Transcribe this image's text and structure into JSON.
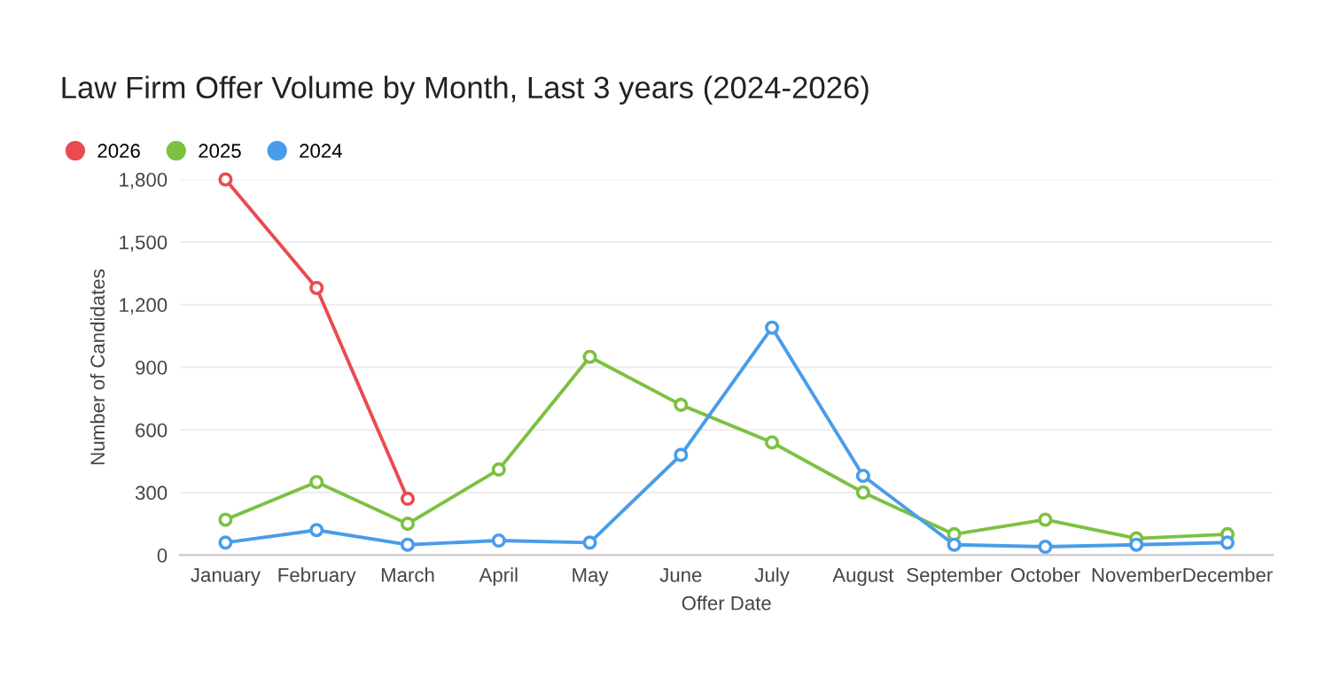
{
  "chart_data": {
    "type": "line",
    "title": "Law Firm Offer Volume by Month, Last 3 years (2024-2026)",
    "xlabel": "Offer Date",
    "ylabel": "Number of Candidates",
    "categories": [
      "January",
      "February",
      "March",
      "April",
      "May",
      "June",
      "July",
      "August",
      "September",
      "October",
      "November",
      "December"
    ],
    "series": [
      {
        "name": "2026",
        "color": "#e84c4f",
        "values": [
          1800,
          1280,
          270,
          null,
          null,
          null,
          null,
          null,
          null,
          null,
          null,
          null
        ]
      },
      {
        "name": "2025",
        "color": "#7cc142",
        "values": [
          170,
          350,
          150,
          410,
          950,
          720,
          540,
          300,
          100,
          170,
          80,
          100
        ]
      },
      {
        "name": "2024",
        "color": "#4a9ce8",
        "values": [
          60,
          120,
          50,
          70,
          60,
          480,
          1090,
          380,
          50,
          40,
          50,
          60
        ]
      }
    ],
    "ylim": [
      0,
      1800
    ],
    "yticks": [
      0,
      300,
      600,
      {
        "value": 900,
        "label": "900"
      },
      {
        "value": 1200,
        "label": "1,200"
      },
      {
        "value": 1500,
        "label": "1,500"
      },
      {
        "value": 1800,
        "label": "1,800"
      }
    ],
    "grid": "y",
    "legend": "top left",
    "marker": "circle",
    "line_style": "solid"
  }
}
